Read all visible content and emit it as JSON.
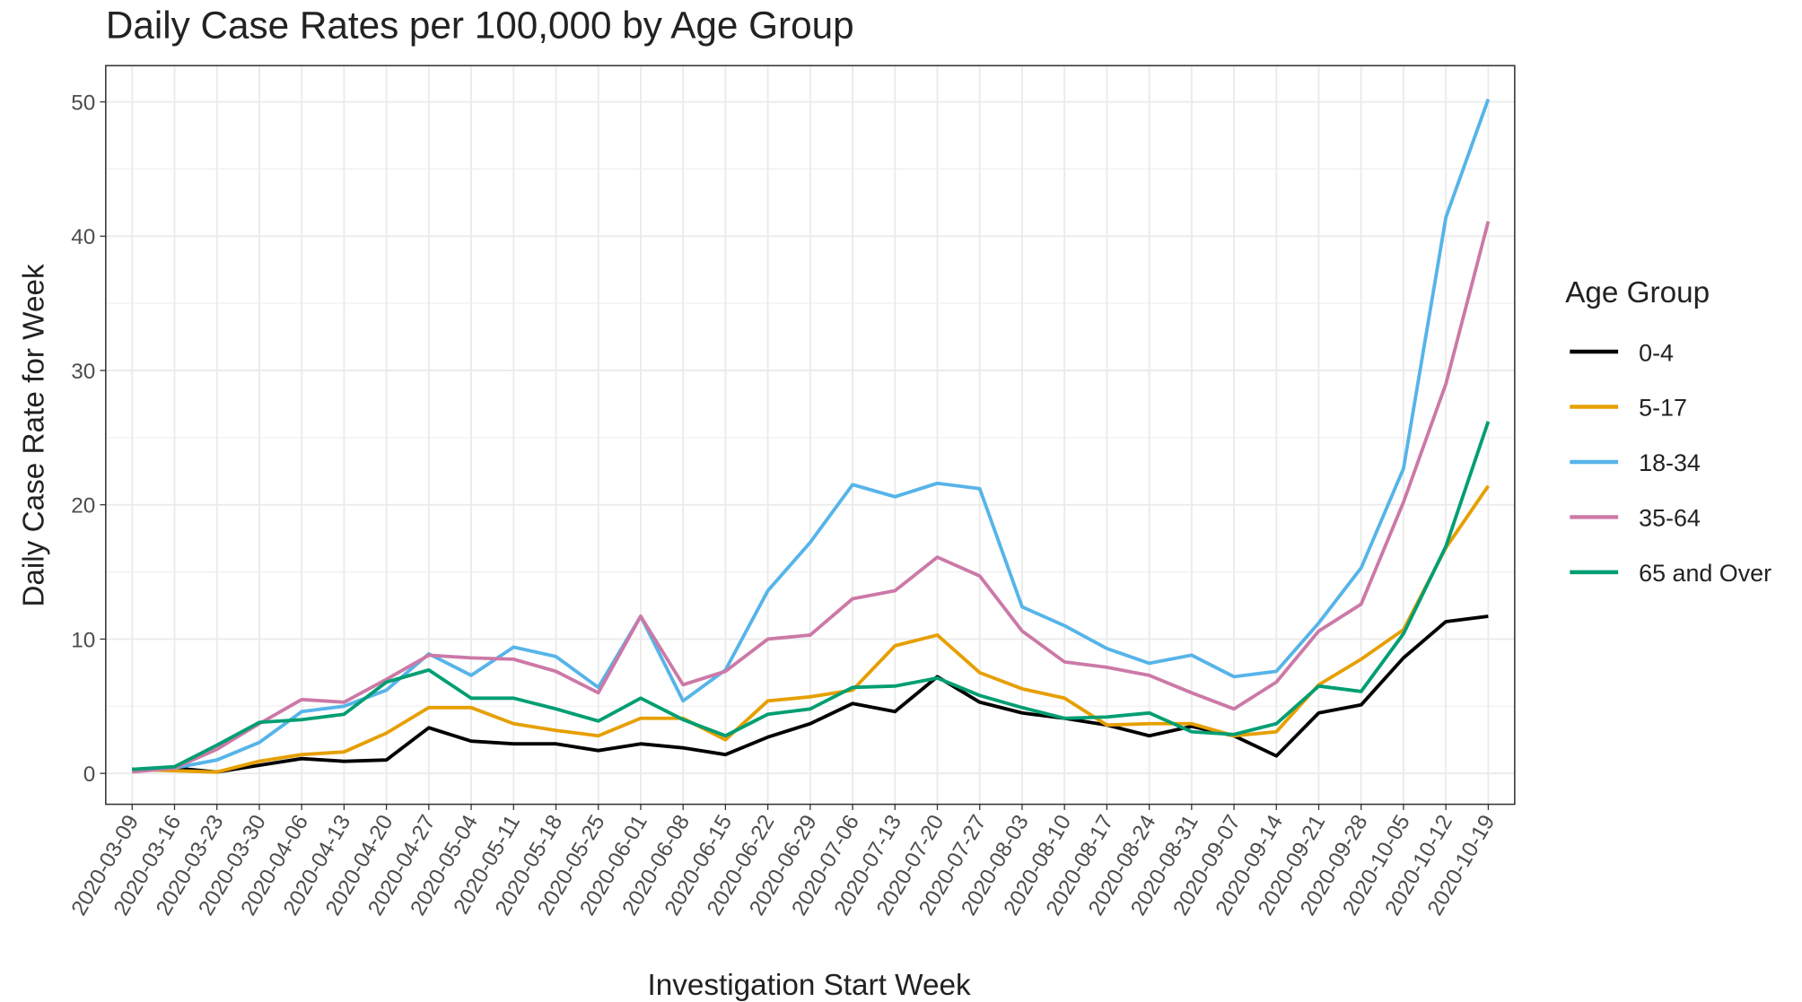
{
  "chart_data": {
    "type": "line",
    "title": "Daily Case Rates per 100,000 by Age Group",
    "x_label": "Investigation Start Week",
    "y_label": "Daily Case Rate for Week",
    "legend_title": "Age Group",
    "legend_position": "right",
    "grid": true,
    "categories": [
      "2020-03-09",
      "2020-03-16",
      "2020-03-23",
      "2020-03-30",
      "2020-04-06",
      "2020-04-13",
      "2020-04-20",
      "2020-04-27",
      "2020-05-04",
      "2020-05-11",
      "2020-05-18",
      "2020-05-25",
      "2020-06-01",
      "2020-06-08",
      "2020-06-15",
      "2020-06-22",
      "2020-06-29",
      "2020-07-06",
      "2020-07-13",
      "2020-07-20",
      "2020-07-27",
      "2020-08-03",
      "2020-08-10",
      "2020-08-17",
      "2020-08-24",
      "2020-08-31",
      "2020-09-07",
      "2020-09-14",
      "2020-09-21",
      "2020-09-28",
      "2020-10-05",
      "2020-10-12",
      "2020-10-19"
    ],
    "ylim": [
      -2.3,
      52.7
    ],
    "yticks": [
      0,
      10,
      20,
      30,
      40,
      50
    ],
    "series": [
      {
        "name": "0-4",
        "color": "#000000",
        "values": [
          0.3,
          0.4,
          0.1,
          0.6,
          1.1,
          0.9,
          1.0,
          3.4,
          2.4,
          2.2,
          2.2,
          1.7,
          2.2,
          1.9,
          1.4,
          2.7,
          3.7,
          5.2,
          4.6,
          7.2,
          5.3,
          4.5,
          4.1,
          3.6,
          2.8,
          3.5,
          2.8,
          1.3,
          4.5,
          5.1,
          8.6,
          11.3,
          11.7
        ]
      },
      {
        "name": "5-17",
        "color": "#E69F00",
        "values": [
          0.3,
          0.2,
          0.1,
          0.9,
          1.4,
          1.6,
          3.0,
          4.9,
          4.9,
          3.7,
          3.2,
          2.8,
          4.1,
          4.1,
          2.5,
          5.4,
          5.7,
          6.2,
          9.5,
          10.3,
          7.5,
          6.3,
          5.6,
          3.6,
          3.7,
          3.7,
          2.8,
          3.1,
          6.6,
          8.5,
          10.7,
          16.8,
          21.4
        ]
      },
      {
        "name": "18-34",
        "color": "#56B4E9",
        "values": [
          0.2,
          0.4,
          1.0,
          2.3,
          4.6,
          5.0,
          6.2,
          8.9,
          7.3,
          9.4,
          8.7,
          6.4,
          11.7,
          5.4,
          7.7,
          13.6,
          17.2,
          21.5,
          20.6,
          21.6,
          21.2,
          12.4,
          11.0,
          9.3,
          8.2,
          8.8,
          7.2,
          7.6,
          11.2,
          15.3,
          22.7,
          41.4,
          50.2
        ]
      },
      {
        "name": "35-64",
        "color": "#CC79A7",
        "values": [
          0.1,
          0.4,
          1.8,
          3.7,
          5.5,
          5.3,
          7.0,
          8.8,
          8.6,
          8.5,
          7.6,
          6.0,
          11.7,
          6.6,
          7.6,
          10.0,
          10.3,
          13.0,
          13.6,
          16.1,
          14.7,
          10.6,
          8.3,
          7.9,
          7.3,
          6.0,
          4.8,
          6.8,
          10.6,
          12.6,
          20.2,
          29.0,
          41.1
        ]
      },
      {
        "name": "65 and Over",
        "color": "#009E73",
        "values": [
          0.3,
          0.5,
          2.1,
          3.8,
          4.0,
          4.4,
          6.8,
          7.7,
          5.6,
          5.6,
          4.8,
          3.9,
          5.6,
          4.0,
          2.8,
          4.4,
          4.8,
          6.4,
          6.5,
          7.1,
          5.8,
          4.9,
          4.1,
          4.2,
          4.5,
          3.1,
          2.9,
          3.7,
          6.5,
          6.1,
          10.4,
          16.9,
          26.2
        ]
      }
    ]
  }
}
